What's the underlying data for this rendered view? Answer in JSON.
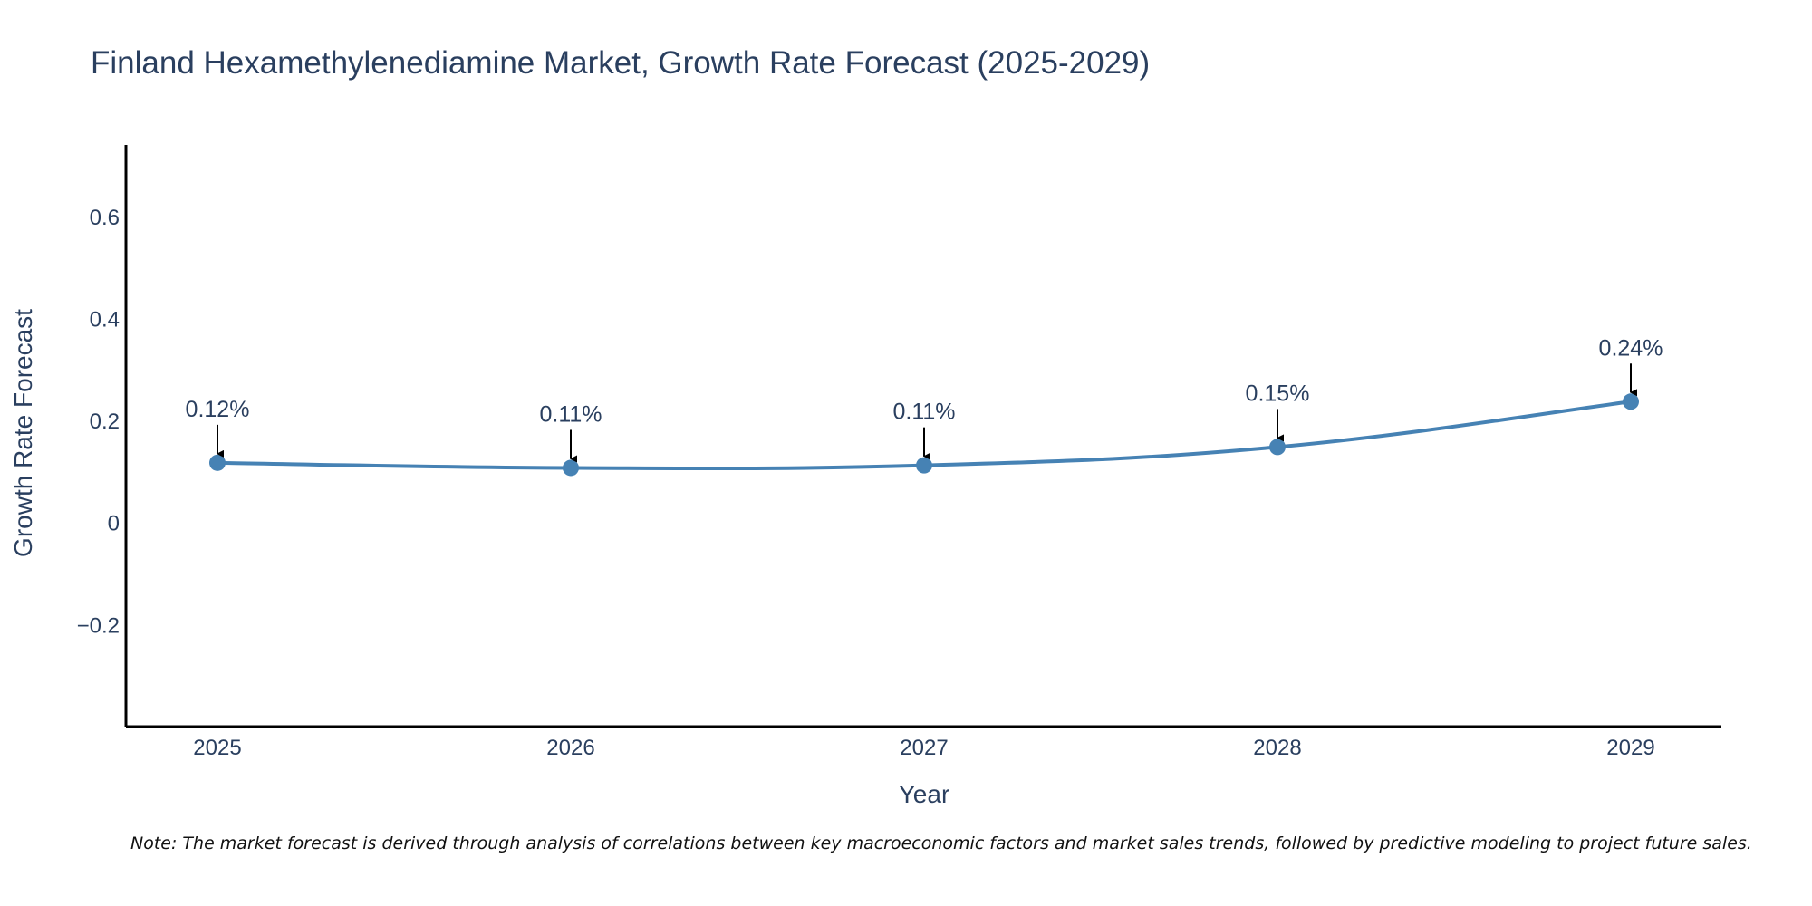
{
  "chart_data": {
    "type": "line",
    "title": "Finland Hexamethylenediamine Market, Growth Rate Forecast (2025-2029)",
    "xlabel": "Year",
    "ylabel": "Growth Rate Forecast",
    "x": [
      "2025",
      "2026",
      "2027",
      "2028",
      "2029"
    ],
    "series": [
      {
        "name": "Growth Rate Forecast",
        "values": [
          0.117,
          0.107,
          0.112,
          0.148,
          0.237
        ]
      }
    ],
    "data_labels": [
      "0.12%",
      "0.11%",
      "0.11%",
      "0.15%",
      "0.24%"
    ],
    "y_ticks": [
      0.6,
      0.4,
      0.2,
      0,
      -0.2
    ],
    "y_tick_labels": [
      "0.6",
      "0.4",
      "0.2",
      "0",
      "−0.2"
    ],
    "ylim": [
      -0.4,
      0.74
    ],
    "grid": false,
    "colors": {
      "line": "#4682b4",
      "marker": "#4682b4",
      "arrow": "#000000",
      "axis": "#000000",
      "text": "#2a3f5f"
    }
  },
  "note": "Note: The market forecast is derived through analysis of correlations between key macroeconomic factors and market sales trends, followed by predictive modeling to project future sales."
}
